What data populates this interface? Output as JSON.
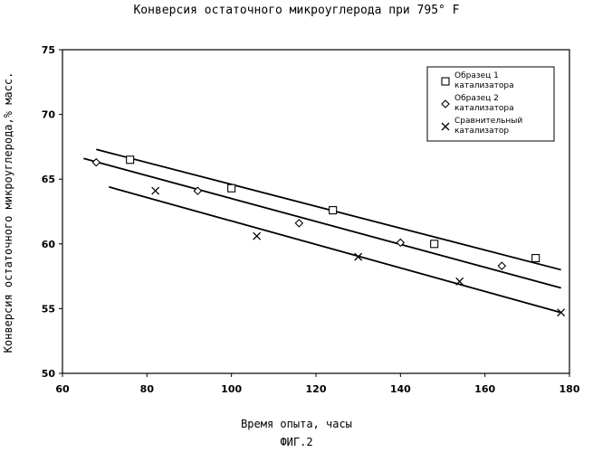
{
  "figure_label": "ФИГ.2",
  "chart_data": {
    "type": "scatter",
    "title": "Конверсия остаточного микроуглерода при 795° F",
    "xlabel": "Время опыта, часы",
    "ylabel": "Конверсия остаточного микроуглерода,% масс.",
    "xlim": [
      60,
      180
    ],
    "ylim": [
      50,
      75
    ],
    "x_ticks": [
      60,
      80,
      100,
      120,
      140,
      160,
      180
    ],
    "y_ticks": [
      50,
      55,
      60,
      65,
      70,
      75
    ],
    "grid": false,
    "legend_position": "top-right",
    "series": [
      {
        "name": "Образец 1 катализатора",
        "marker": "square",
        "points": [
          [
            76,
            66.5
          ],
          [
            100,
            64.3
          ],
          [
            124,
            62.6
          ],
          [
            148,
            60.0
          ],
          [
            172,
            58.9
          ]
        ],
        "trend": [
          [
            68,
            67.3
          ],
          [
            178,
            58.0
          ]
        ]
      },
      {
        "name": "Образец 2 катализатора",
        "marker": "diamond",
        "points": [
          [
            68,
            66.3
          ],
          [
            92,
            64.1
          ],
          [
            116,
            61.6
          ],
          [
            140,
            60.1
          ],
          [
            164,
            58.3
          ]
        ],
        "trend": [
          [
            65,
            66.6
          ],
          [
            178,
            56.6
          ]
        ]
      },
      {
        "name": "Сравнительный катализатор",
        "marker": "x",
        "points": [
          [
            82,
            64.1
          ],
          [
            106,
            60.6
          ],
          [
            130,
            59.0
          ],
          [
            154,
            57.1
          ],
          [
            178,
            54.7
          ]
        ],
        "trend": [
          [
            71,
            64.4
          ],
          [
            178,
            54.7
          ]
        ]
      }
    ]
  }
}
